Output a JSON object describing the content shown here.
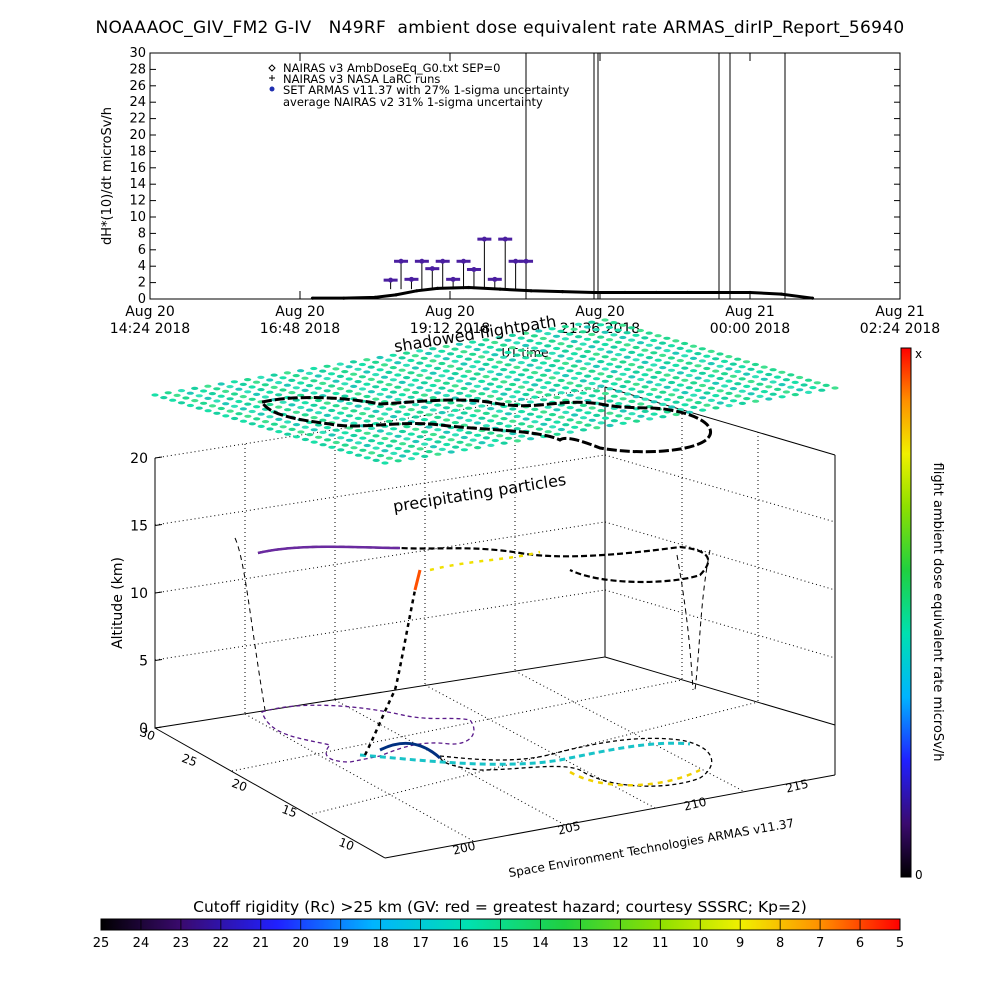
{
  "title": "NOAAAOC_GIV_FM2 G-IV   N49RF  ambient dose equivalent rate ARMAS_dirIP_Report_56940",
  "top_chart": {
    "type": "scatter",
    "ylabel": "dH*(10)/dt microSv/h",
    "ylim": [
      0,
      30
    ],
    "yticks": [
      0,
      2,
      4,
      6,
      8,
      10,
      12,
      14,
      16,
      18,
      20,
      22,
      24,
      26,
      28,
      30
    ],
    "xlim_hours": [
      0,
      12
    ],
    "xticks": [
      {
        "date": "Aug 20",
        "time": "14:24 2018"
      },
      {
        "date": "Aug 20",
        "time": "16:48 2018"
      },
      {
        "date": "Aug 20",
        "time": "19:12 2018"
      },
      {
        "date": "Aug 20",
        "time": "21:36 2018"
      },
      {
        "date": "Aug 21",
        "time": "00:00 2018"
      },
      {
        "date": "Aug 21",
        "time": "02:24 2018"
      }
    ],
    "xlabel": "UT time",
    "legend": [
      "NAIRAS v3 AmbDoseEq_G0.txt SEP=0",
      "NAIRAS v3 NASA LaRC runs",
      "SET ARMAS v11.37 with 27% 1-sigma uncertainty",
      "average NAIRAS v2 31% 1-sigma uncertainty"
    ],
    "legend_position": "top-left",
    "armas_color": "#4b1fa0",
    "nairas_color": "#000000"
  },
  "chart_data": {
    "type": "scatter",
    "series": [
      {
        "name": "NAIRAS v3 AmbDoseEq_G0.txt SEP=0",
        "x": [
          "17:00",
          "17:30",
          "18:00",
          "18:20",
          "18:40",
          "19:00",
          "19:30",
          "20:00",
          "20:30",
          "21:00",
          "21:30",
          "22:00",
          "22:30",
          "23:00",
          "23:30",
          "00:00",
          "00:30",
          "01:00"
        ],
        "y": [
          0.1,
          0.1,
          0.2,
          0.5,
          1.0,
          1.3,
          1.4,
          1.2,
          1.0,
          0.9,
          0.8,
          0.8,
          0.8,
          0.8,
          0.8,
          0.8,
          0.6,
          0.1
        ]
      },
      {
        "name": "SET ARMAS v11.37 with 27% 1-sigma uncertainty",
        "x": [
          "18:15",
          "18:25",
          "18:35",
          "18:45",
          "18:55",
          "19:05",
          "19:15",
          "19:25",
          "19:35",
          "19:45",
          "19:55",
          "20:05",
          "20:15",
          "20:25"
        ],
        "y": [
          2.3,
          4.6,
          2.4,
          4.6,
          3.7,
          4.6,
          2.4,
          4.6,
          3.6,
          7.3,
          2.4,
          7.3,
          4.6,
          4.6
        ]
      }
    ]
  },
  "headings": {
    "shadowed_flightpath": "shadowed flightpath",
    "precipitating_particles": "precipitating particles"
  },
  "plot3d": {
    "zlabel": "Altitude (km)",
    "zticks": [
      "0",
      "5",
      "10",
      "15",
      "20"
    ],
    "lat_ticks": [
      "10",
      "15",
      "20",
      "25",
      "30"
    ],
    "lon_ticks": [
      "200",
      "205",
      "210",
      "215"
    ],
    "credit": "Space Environment Technologies ARMAS v11.37"
  },
  "colorbar_right": {
    "label": "flight ambient dose equivalent rate microSv/h",
    "top_label": "x",
    "bottom_label": "0"
  },
  "colorbar_bottom": {
    "title": "Cutoff rigidity (Rc) >25 km (GV: red = greatest hazard; courtesy SSSRC; Kp=2)",
    "ticks": [
      "25",
      "24",
      "23",
      "22",
      "21",
      "20",
      "19",
      "18",
      "17",
      "16",
      "15",
      "14",
      "13",
      "12",
      "11",
      "10",
      "9",
      "8",
      "7",
      "6",
      "5"
    ]
  }
}
